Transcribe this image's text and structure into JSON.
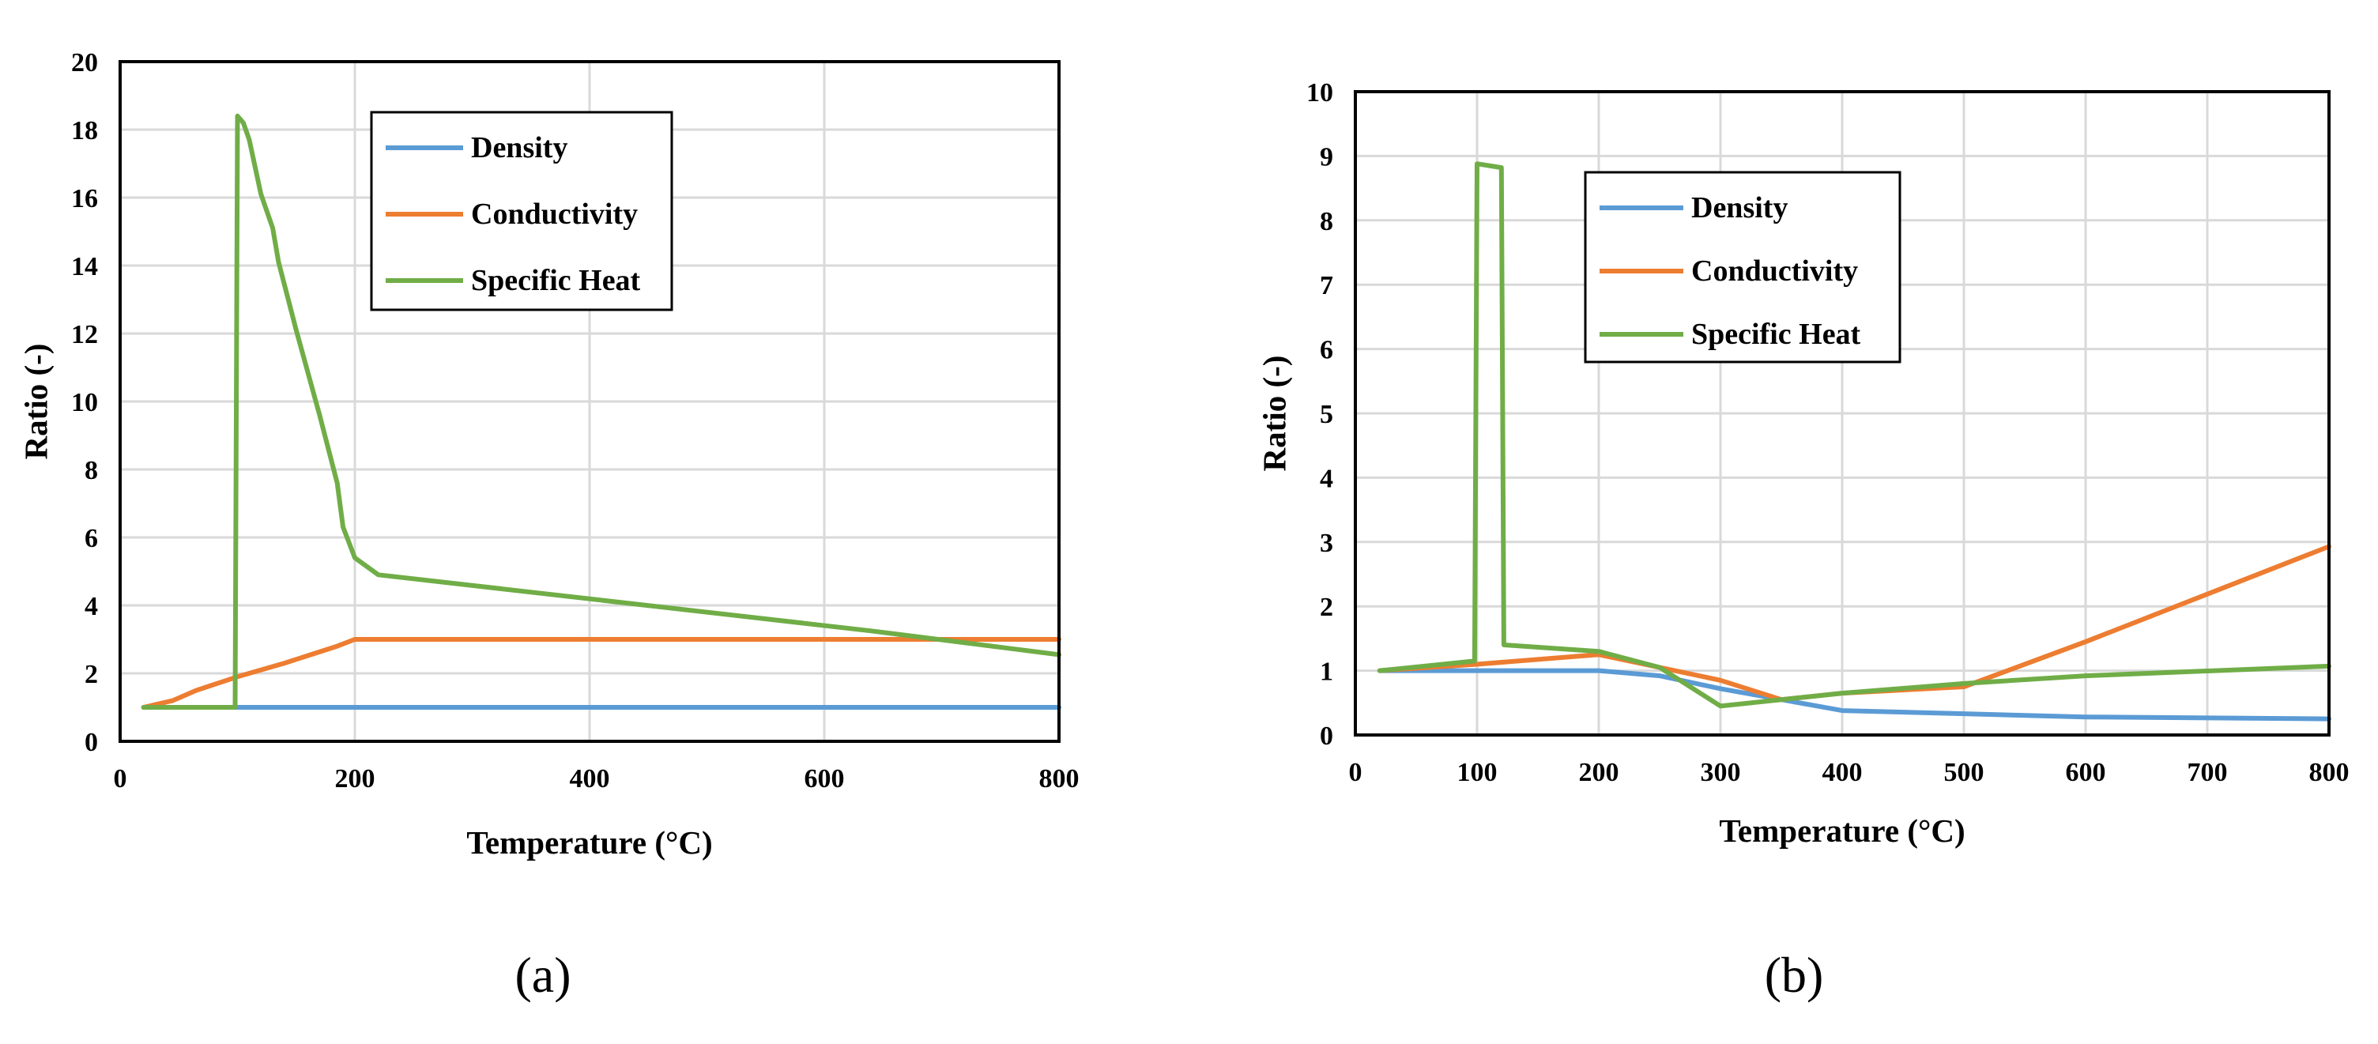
{
  "chart_data": [
    {
      "id": "a",
      "type": "line",
      "caption": "(a)",
      "xlabel": "Temperature (°C)",
      "ylabel": "Ratio (-)",
      "xlim": [
        0,
        800
      ],
      "ylim": [
        0,
        20
      ],
      "xticks": [
        0,
        200,
        400,
        600,
        800
      ],
      "yticks": [
        0,
        2,
        4,
        6,
        8,
        10,
        12,
        14,
        16,
        18,
        20
      ],
      "grid": true,
      "legend_position": "top-center",
      "series": [
        {
          "name": "Density",
          "color": "#5b9bd5",
          "points": [
            [
              20,
              1
            ],
            [
              800,
              1
            ]
          ]
        },
        {
          "name": "Conductivity",
          "color": "#ed7d31",
          "points": [
            [
              20,
              1
            ],
            [
              45,
              1.2
            ],
            [
              65,
              1.5
            ],
            [
              100,
              1.9
            ],
            [
              140,
              2.3
            ],
            [
              185,
              2.8
            ],
            [
              200,
              3.0
            ],
            [
              800,
              3.0
            ]
          ]
        },
        {
          "name": "Specific Heat",
          "color": "#70ad47",
          "points": [
            [
              20,
              1
            ],
            [
              98,
              1
            ],
            [
              100,
              18.4
            ],
            [
              105,
              18.2
            ],
            [
              110,
              17.7
            ],
            [
              120,
              16.1
            ],
            [
              130,
              15.1
            ],
            [
              135,
              14.1
            ],
            [
              150,
              12.1
            ],
            [
              170,
              9.6
            ],
            [
              185,
              7.6
            ],
            [
              190,
              6.3
            ],
            [
              200,
              5.4
            ],
            [
              220,
              4.9
            ],
            [
              640,
              3.25
            ],
            [
              800,
              2.55
            ]
          ]
        }
      ]
    },
    {
      "id": "b",
      "type": "line",
      "caption": "(b)",
      "xlabel": "Temperature (°C)",
      "ylabel": "Ratio (-)",
      "xlim": [
        0,
        800
      ],
      "ylim": [
        0,
        10
      ],
      "xticks": [
        0,
        100,
        200,
        300,
        400,
        500,
        600,
        700,
        800
      ],
      "yticks": [
        0,
        1,
        2,
        3,
        4,
        5,
        6,
        7,
        8,
        9,
        10
      ],
      "grid": true,
      "legend_position": "top-center",
      "series": [
        {
          "name": "Density",
          "color": "#5b9bd5",
          "points": [
            [
              20,
              1
            ],
            [
              200,
              1
            ],
            [
              250,
              0.92
            ],
            [
              300,
              0.72
            ],
            [
              350,
              0.55
            ],
            [
              400,
              0.38
            ],
            [
              500,
              0.33
            ],
            [
              600,
              0.28
            ],
            [
              800,
              0.25
            ]
          ]
        },
        {
          "name": "Conductivity",
          "color": "#ed7d31",
          "points": [
            [
              20,
              1
            ],
            [
              100,
              1.1
            ],
            [
              200,
              1.25
            ],
            [
              300,
              0.85
            ],
            [
              350,
              0.55
            ],
            [
              400,
              0.65
            ],
            [
              500,
              0.75
            ],
            [
              600,
              1.45
            ],
            [
              800,
              2.93
            ]
          ]
        },
        {
          "name": "Specific Heat",
          "color": "#70ad47",
          "points": [
            [
              20,
              1
            ],
            [
              98,
              1.15
            ],
            [
              100,
              8.88
            ],
            [
              120,
              8.82
            ],
            [
              122,
              1.4
            ],
            [
              200,
              1.3
            ],
            [
              250,
              1.05
            ],
            [
              300,
              0.45
            ],
            [
              400,
              0.65
            ],
            [
              500,
              0.8
            ],
            [
              600,
              0.92
            ],
            [
              800,
              1.07
            ]
          ]
        }
      ]
    }
  ]
}
